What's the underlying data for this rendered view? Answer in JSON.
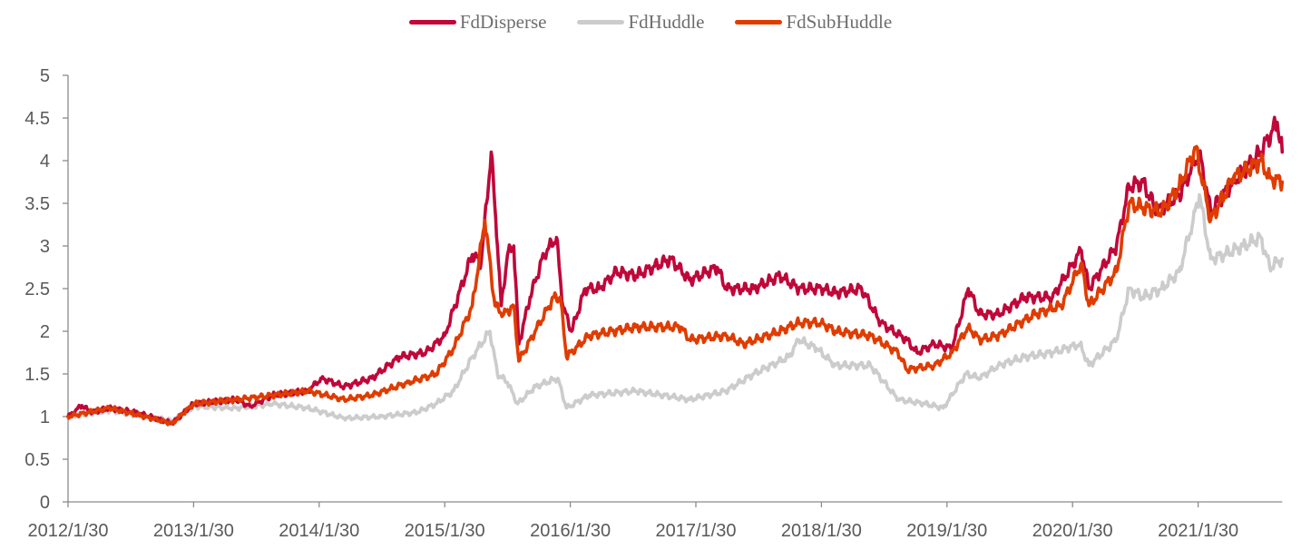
{
  "chart_data": {
    "type": "line",
    "title": "",
    "xlabel": "",
    "ylabel": "",
    "ylim": [
      0,
      5
    ],
    "yticks": [
      "0",
      "0.5",
      "1",
      "1.5",
      "2",
      "2.5",
      "3",
      "3.5",
      "4",
      "4.5",
      "5"
    ],
    "xlim": [
      0,
      9.67
    ],
    "xticks": [
      "2012/1/30",
      "2013/1/30",
      "2014/1/30",
      "2015/1/30",
      "2016/1/30",
      "2017/1/30",
      "2018/1/30",
      "2019/1/30",
      "2020/1/30",
      "2021/1/30"
    ],
    "grid": false,
    "legend_position": "top-center",
    "series": [
      {
        "name": "FdDisperse",
        "color": "#C0073A",
        "points": [
          [
            0,
            1.0
          ],
          [
            0.11,
            1.13
          ],
          [
            0.18,
            1.05
          ],
          [
            0.33,
            1.1
          ],
          [
            0.54,
            1.05
          ],
          [
            0.83,
            0.92
          ],
          [
            1.0,
            1.15
          ],
          [
            1.34,
            1.2
          ],
          [
            1.45,
            1.12
          ],
          [
            1.63,
            1.25
          ],
          [
            1.91,
            1.3
          ],
          [
            2.02,
            1.45
          ],
          [
            2.2,
            1.35
          ],
          [
            2.42,
            1.45
          ],
          [
            2.64,
            1.7
          ],
          [
            2.85,
            1.75
          ],
          [
            3.0,
            1.95
          ],
          [
            3.22,
            2.9
          ],
          [
            3.29,
            2.8
          ],
          [
            3.37,
            4.1
          ],
          [
            3.42,
            3.0
          ],
          [
            3.45,
            2.3
          ],
          [
            3.5,
            2.9
          ],
          [
            3.55,
            3.0
          ],
          [
            3.59,
            1.85
          ],
          [
            3.68,
            2.4
          ],
          [
            3.79,
            2.9
          ],
          [
            3.89,
            3.1
          ],
          [
            3.94,
            2.3
          ],
          [
            4.01,
            2.0
          ],
          [
            4.12,
            2.5
          ],
          [
            4.23,
            2.5
          ],
          [
            4.37,
            2.7
          ],
          [
            4.52,
            2.65
          ],
          [
            4.8,
            2.85
          ],
          [
            4.95,
            2.6
          ],
          [
            5.17,
            2.75
          ],
          [
            5.24,
            2.5
          ],
          [
            5.46,
            2.5
          ],
          [
            5.67,
            2.65
          ],
          [
            5.82,
            2.5
          ],
          [
            6.0,
            2.5
          ],
          [
            6.11,
            2.45
          ],
          [
            6.32,
            2.5
          ],
          [
            6.47,
            2.1
          ],
          [
            6.68,
            1.9
          ],
          [
            6.76,
            1.75
          ],
          [
            6.9,
            1.85
          ],
          [
            7.04,
            1.8
          ],
          [
            7.17,
            2.5
          ],
          [
            7.26,
            2.2
          ],
          [
            7.41,
            2.2
          ],
          [
            7.62,
            2.4
          ],
          [
            7.84,
            2.4
          ],
          [
            8.07,
            2.95
          ],
          [
            8.13,
            2.5
          ],
          [
            8.35,
            3.0
          ],
          [
            8.45,
            3.7
          ],
          [
            8.56,
            3.75
          ],
          [
            8.67,
            3.4
          ],
          [
            8.85,
            3.6
          ],
          [
            9.01,
            4.1
          ],
          [
            9.1,
            3.4
          ],
          [
            9.28,
            3.75
          ],
          [
            9.5,
            4.1
          ],
          [
            9.63,
            4.45
          ],
          [
            9.67,
            4.1
          ]
        ]
      },
      {
        "name": "FdHuddle",
        "color": "#CCCCCC",
        "points": [
          [
            0,
            1.0
          ],
          [
            0.33,
            1.07
          ],
          [
            0.83,
            0.95
          ],
          [
            1.0,
            1.12
          ],
          [
            1.34,
            1.1
          ],
          [
            1.63,
            1.15
          ],
          [
            1.91,
            1.1
          ],
          [
            2.2,
            0.98
          ],
          [
            2.49,
            1.0
          ],
          [
            2.78,
            1.05
          ],
          [
            2.93,
            1.15
          ],
          [
            3.07,
            1.3
          ],
          [
            3.22,
            1.7
          ],
          [
            3.36,
            2.0
          ],
          [
            3.42,
            1.5
          ],
          [
            3.5,
            1.4
          ],
          [
            3.58,
            1.15
          ],
          [
            3.72,
            1.35
          ],
          [
            3.9,
            1.45
          ],
          [
            3.97,
            1.1
          ],
          [
            4.15,
            1.25
          ],
          [
            4.52,
            1.3
          ],
          [
            4.95,
            1.2
          ],
          [
            5.24,
            1.3
          ],
          [
            5.46,
            1.5
          ],
          [
            5.74,
            1.7
          ],
          [
            5.82,
            1.9
          ],
          [
            5.96,
            1.8
          ],
          [
            6.11,
            1.6
          ],
          [
            6.39,
            1.6
          ],
          [
            6.61,
            1.2
          ],
          [
            6.83,
            1.15
          ],
          [
            6.97,
            1.1
          ],
          [
            7.15,
            1.5
          ],
          [
            7.26,
            1.45
          ],
          [
            7.41,
            1.6
          ],
          [
            7.62,
            1.7
          ],
          [
            7.84,
            1.75
          ],
          [
            8.06,
            1.85
          ],
          [
            8.13,
            1.6
          ],
          [
            8.35,
            1.9
          ],
          [
            8.45,
            2.5
          ],
          [
            8.56,
            2.4
          ],
          [
            8.71,
            2.5
          ],
          [
            8.85,
            2.7
          ],
          [
            8.96,
            3.3
          ],
          [
            9.01,
            3.6
          ],
          [
            9.1,
            2.85
          ],
          [
            9.21,
            2.9
          ],
          [
            9.36,
            3.0
          ],
          [
            9.5,
            3.1
          ],
          [
            9.57,
            2.75
          ],
          [
            9.67,
            2.85
          ]
        ]
      },
      {
        "name": "FdSubHuddle",
        "color": "#E03C00",
        "points": [
          [
            0,
            1.0
          ],
          [
            0.33,
            1.1
          ],
          [
            0.83,
            0.92
          ],
          [
            1.0,
            1.15
          ],
          [
            1.34,
            1.2
          ],
          [
            1.63,
            1.25
          ],
          [
            1.91,
            1.3
          ],
          [
            2.2,
            1.2
          ],
          [
            2.42,
            1.25
          ],
          [
            2.71,
            1.4
          ],
          [
            2.93,
            1.5
          ],
          [
            3.07,
            1.8
          ],
          [
            3.22,
            2.3
          ],
          [
            3.32,
            3.3
          ],
          [
            3.4,
            2.3
          ],
          [
            3.47,
            2.2
          ],
          [
            3.55,
            2.3
          ],
          [
            3.59,
            1.65
          ],
          [
            3.72,
            2.0
          ],
          [
            3.87,
            2.4
          ],
          [
            3.92,
            2.4
          ],
          [
            3.97,
            1.7
          ],
          [
            4.15,
            1.95
          ],
          [
            4.52,
            2.05
          ],
          [
            4.88,
            2.05
          ],
          [
            4.95,
            1.9
          ],
          [
            5.24,
            1.95
          ],
          [
            5.38,
            1.85
          ],
          [
            5.67,
            2.0
          ],
          [
            5.82,
            2.1
          ],
          [
            6.0,
            2.1
          ],
          [
            6.11,
            2.0
          ],
          [
            6.39,
            1.95
          ],
          [
            6.61,
            1.75
          ],
          [
            6.68,
            1.55
          ],
          [
            6.9,
            1.6
          ],
          [
            7.04,
            1.75
          ],
          [
            7.17,
            2.05
          ],
          [
            7.26,
            1.9
          ],
          [
            7.41,
            1.95
          ],
          [
            7.7,
            2.2
          ],
          [
            7.91,
            2.3
          ],
          [
            8.07,
            2.8
          ],
          [
            8.13,
            2.3
          ],
          [
            8.35,
            2.7
          ],
          [
            8.45,
            3.5
          ],
          [
            8.56,
            3.45
          ],
          [
            8.71,
            3.4
          ],
          [
            8.85,
            3.7
          ],
          [
            8.98,
            4.15
          ],
          [
            9.1,
            3.3
          ],
          [
            9.28,
            3.8
          ],
          [
            9.5,
            4.0
          ],
          [
            9.57,
            3.8
          ],
          [
            9.67,
            3.75
          ]
        ]
      }
    ]
  }
}
